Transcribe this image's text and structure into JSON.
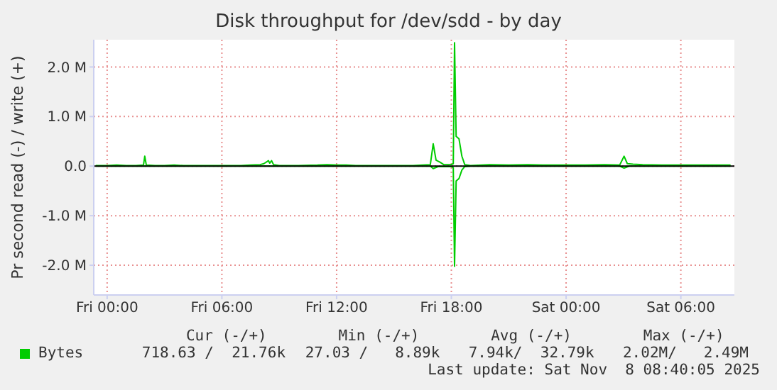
{
  "chart_data": {
    "type": "line",
    "title": "Disk throughput for /dev/sdd - by day",
    "ylabel": "Pr second read (-) / write (+)",
    "xlim": [
      "2025-11-06T23:18",
      "2025-11-08T08:48"
    ],
    "xticks": [
      {
        "value": "2025-11-07T00:00",
        "label": "Fri 00:00"
      },
      {
        "value": "2025-11-07T06:00",
        "label": "Fri 06:00"
      },
      {
        "value": "2025-11-07T12:00",
        "label": "Fri 12:00"
      },
      {
        "value": "2025-11-07T18:00",
        "label": "Fri 18:00"
      },
      {
        "value": "2025-11-08T00:00",
        "label": "Sat 00:00"
      },
      {
        "value": "2025-11-08T06:00",
        "label": "Sat 06:00"
      }
    ],
    "ylim": [
      -2.6,
      2.55
    ],
    "yticks": [
      {
        "value": -2,
        "label": "-2.0 M"
      },
      {
        "value": -1,
        "label": "-1.0 M"
      },
      {
        "value": 0,
        "label": "0.0"
      },
      {
        "value": 1,
        "label": "1.0 M"
      },
      {
        "value": 2,
        "label": "2.0 M"
      }
    ],
    "grid": true,
    "legend": "bottom left",
    "marker": "none",
    "ref_lines": [
      {
        "axis": "y",
        "value": 0,
        "color": "#000000"
      }
    ],
    "series": [
      {
        "name": "Bytes",
        "color": "#00cc00",
        "x": [
          "2025-11-06T23:24",
          "2025-11-07T00:00",
          "2025-11-07T00:30",
          "2025-11-07T01:00",
          "2025-11-07T01:30",
          "2025-11-07T01:54",
          "2025-11-07T01:58",
          "2025-11-07T02:03",
          "2025-11-07T02:30",
          "2025-11-07T03:00",
          "2025-11-07T03:30",
          "2025-11-07T04:00",
          "2025-11-07T05:00",
          "2025-11-07T06:00",
          "2025-11-07T07:00",
          "2025-11-07T07:30",
          "2025-11-07T08:00",
          "2025-11-07T08:12",
          "2025-11-07T08:26",
          "2025-11-07T08:30",
          "2025-11-07T08:36",
          "2025-11-07T08:42",
          "2025-11-07T09:00",
          "2025-11-07T10:00",
          "2025-11-07T11:00",
          "2025-11-07T11:30",
          "2025-11-07T12:00",
          "2025-11-07T12:30",
          "2025-11-07T13:00",
          "2025-11-07T14:00",
          "2025-11-07T15:00",
          "2025-11-07T16:00",
          "2025-11-07T16:30",
          "2025-11-07T16:54",
          "2025-11-07T17:03",
          "2025-11-07T17:12",
          "2025-11-07T17:24",
          "2025-11-07T17:36",
          "2025-11-07T18:00",
          "2025-11-07T18:06",
          "2025-11-07T18:10",
          "2025-11-07T18:15",
          "2025-11-07T18:24",
          "2025-11-07T18:33",
          "2025-11-07T18:42",
          "2025-11-07T19:00",
          "2025-11-07T20:00",
          "2025-11-07T21:00",
          "2025-11-07T22:00",
          "2025-11-07T23:00",
          "2025-11-08T00:00",
          "2025-11-08T01:00",
          "2025-11-08T02:00",
          "2025-11-08T02:48",
          "2025-11-08T03:02",
          "2025-11-08T03:12",
          "2025-11-08T03:30",
          "2025-11-08T04:00",
          "2025-11-08T05:00",
          "2025-11-08T06:00",
          "2025-11-08T07:00",
          "2025-11-08T08:00",
          "2025-11-08T08:36"
        ],
        "values": [
          0.01,
          0.01,
          0.02,
          0.01,
          0.01,
          0.02,
          0.2,
          0.02,
          0.01,
          0.01,
          0.02,
          0.01,
          0.01,
          0.01,
          0.01,
          0.02,
          0.03,
          0.05,
          0.11,
          0.06,
          0.11,
          0.03,
          0.01,
          0.01,
          0.02,
          0.03,
          0.02,
          0.02,
          0.01,
          0.01,
          0.01,
          0.01,
          0.02,
          0.03,
          0.45,
          0.12,
          0.08,
          0.03,
          0.03,
          0.05,
          2.49,
          0.6,
          0.55,
          0.2,
          0.03,
          0.01,
          0.03,
          0.02,
          0.03,
          0.02,
          0.02,
          0.02,
          0.03,
          0.02,
          0.2,
          0.05,
          0.04,
          0.03,
          0.02,
          0.02,
          0.02,
          0.02,
          0.02
        ]
      },
      {
        "color": "#00cc00",
        "x": [
          "2025-11-06T23:24",
          "2025-11-07T05:00",
          "2025-11-07T10:00",
          "2025-11-07T16:54",
          "2025-11-07T17:03",
          "2025-11-07T17:18",
          "2025-11-07T18:00",
          "2025-11-07T18:06",
          "2025-11-07T18:10",
          "2025-11-07T18:15",
          "2025-11-07T18:24",
          "2025-11-07T18:33",
          "2025-11-07T18:42",
          "2025-11-07T19:00",
          "2025-11-08T02:48",
          "2025-11-08T03:02",
          "2025-11-08T03:18",
          "2025-11-08T08:36"
        ],
        "values": [
          0,
          0,
          0,
          0,
          -0.05,
          -0.01,
          -0.01,
          -0.03,
          -2.02,
          -0.3,
          -0.25,
          -0.08,
          -0.01,
          0,
          0,
          -0.04,
          0,
          0
        ]
      }
    ],
    "annotations": [
      "Cur (-/+)",
      "Min (-/+)",
      "Avg (-/+)",
      "Max (-/+)",
      "718.63 /  21.76k",
      "27.03 /   8.89k",
      "7.94k/  32.79k",
      "2.02M/   2.49M",
      "Last update: Sat Nov  8 08:40:05 2025"
    ]
  }
}
